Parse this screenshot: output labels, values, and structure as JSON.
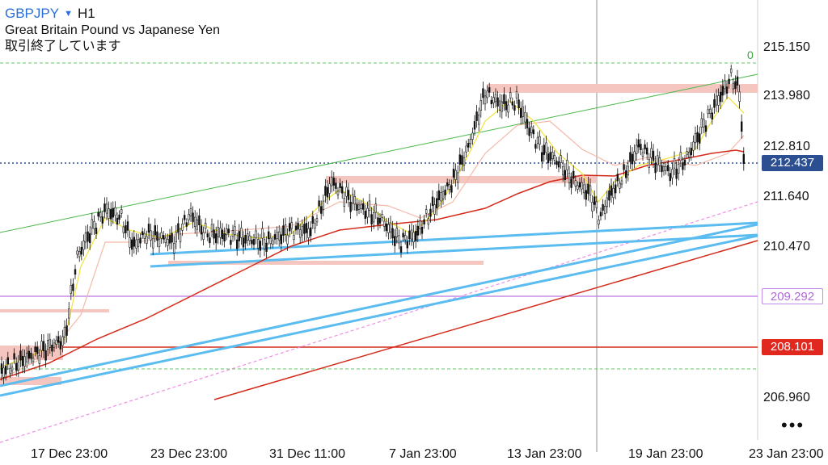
{
  "header": {
    "symbol": "GBPJPY",
    "caret": "▼",
    "timeframe": "H1",
    "instrument_name": "Great Britain Pound vs Japanese Yen",
    "status": "取引終了しています"
  },
  "price_axis": [
    "215.150",
    "213.980",
    "212.810",
    "211.640",
    "210.470",
    "206.960"
  ],
  "tags": {
    "current": {
      "value": "212.437",
      "bg": "#2b4f91",
      "fg": "#ffffff"
    },
    "purple": {
      "value": "209.292",
      "bg": "#ffffff",
      "fg": "#b06ad8",
      "border": "#c58be8"
    },
    "red": {
      "value": "208.101",
      "bg": "#e0281f",
      "fg": "#ffffff"
    }
  },
  "fib_zero_label": "0",
  "time_axis": [
    "17 Dec 23:00",
    "23 Dec 23:00",
    "31 Dec 11:00",
    "7 Jan 23:00",
    "13 Jan 23:00",
    "19 Jan 23:00",
    "23 Jan 23:00"
  ],
  "more_icon": "•••",
  "colors": {
    "candle": "#111111",
    "ma_fast": "#f2e542",
    "ma_mid": "#f5b9a8",
    "ma_slow": "#d42a1a",
    "trend": "#5bbcf0",
    "zone": "#f5c6c0"
  }
}
